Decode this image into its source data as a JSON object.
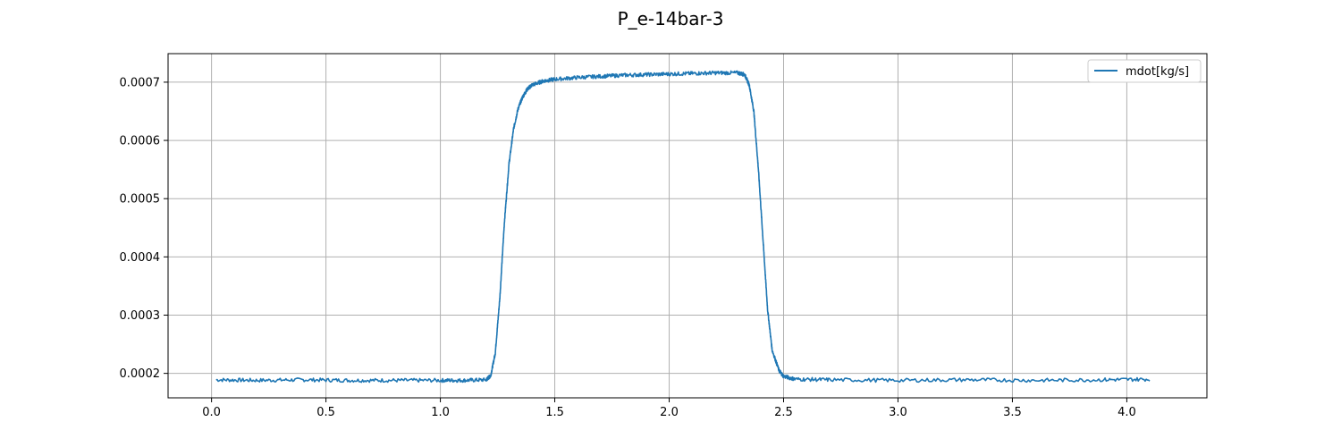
{
  "chart_data": {
    "type": "line",
    "title": "P_e-14bar-3",
    "xlabel": "",
    "ylabel": "",
    "xlim": [
      -0.19,
      4.35
    ],
    "ylim": [
      0.000158,
      0.000749
    ],
    "xticks": [
      0.0,
      0.5,
      1.0,
      1.5,
      2.0,
      2.5,
      3.0,
      3.5,
      4.0
    ],
    "xtick_labels": [
      "0.0",
      "0.5",
      "1.0",
      "1.5",
      "2.0",
      "2.5",
      "3.0",
      "3.5",
      "4.0"
    ],
    "yticks": [
      0.0002,
      0.0003,
      0.0004,
      0.0005,
      0.0006,
      0.0007
    ],
    "ytick_labels": [
      "0.0002",
      "0.0003",
      "0.0004",
      "0.0005",
      "0.0006",
      "0.0007"
    ],
    "grid": true,
    "legend_position": "top-right",
    "series": [
      {
        "name": "mdot[kg/s]",
        "color": "#1f77b4",
        "x": [
          0.02,
          0.2,
          0.4,
          0.6,
          0.8,
          1.0,
          1.1,
          1.2,
          1.22,
          1.24,
          1.26,
          1.28,
          1.3,
          1.32,
          1.34,
          1.36,
          1.38,
          1.4,
          1.45,
          1.5,
          1.6,
          1.7,
          1.8,
          1.9,
          2.0,
          2.1,
          2.2,
          2.3,
          2.33,
          2.35,
          2.37,
          2.39,
          2.41,
          2.43,
          2.45,
          2.48,
          2.5,
          2.55,
          2.7,
          3.0,
          3.3,
          3.6,
          3.9,
          4.1
        ],
        "y": [
          0.000189,
          0.000188,
          0.000189,
          0.000188,
          0.000188,
          0.000188,
          0.000188,
          0.000189,
          0.000196,
          0.000235,
          0.00033,
          0.00046,
          0.00056,
          0.00062,
          0.000655,
          0.000675,
          0.000688,
          0.000695,
          0.000702,
          0.000705,
          0.000708,
          0.00071,
          0.000712,
          0.000713,
          0.000714,
          0.000715,
          0.000716,
          0.000716,
          0.000713,
          0.000695,
          0.00065,
          0.00055,
          0.00043,
          0.00031,
          0.00024,
          0.000205,
          0.000195,
          0.00019,
          0.000189,
          0.000188,
          0.000189,
          0.000188,
          0.000189,
          0.00019
        ]
      }
    ]
  }
}
